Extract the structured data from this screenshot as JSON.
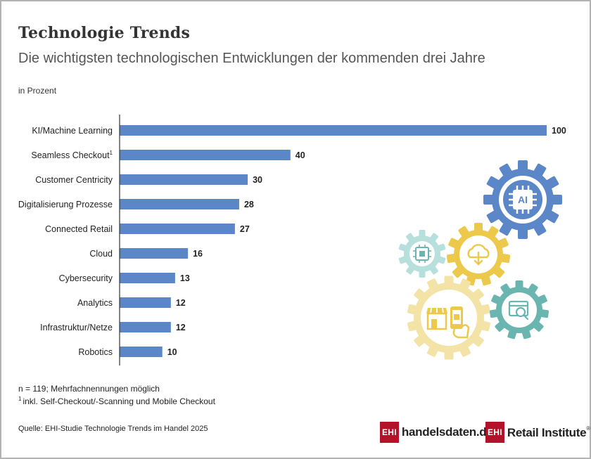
{
  "header": {
    "title": "Technologie Trends",
    "subtitle": "Die wichtigsten technologischen Entwicklungen der kommenden drei Jahre",
    "unit": "in Prozent"
  },
  "chart_data": {
    "type": "bar",
    "orientation": "horizontal",
    "title": "Technologie Trends",
    "subtitle": "Die wichtigsten technologischen Entwicklungen der kommenden drei Jahre",
    "ylabel": "in Prozent",
    "categories": [
      "KI/Machine Learning",
      "Seamless Checkout",
      "Customer Centricity",
      "Digitalisierung Prozesse",
      "Connected Retail",
      "Cloud",
      "Cybersecurity",
      "Analytics",
      "Infrastruktur/Netze",
      "Robotics"
    ],
    "category_marks": [
      "",
      "1",
      "",
      "",
      "",
      "",
      "",
      "",
      "",
      ""
    ],
    "values": [
      100,
      40,
      30,
      28,
      27,
      16,
      13,
      12,
      12,
      10
    ],
    "xlim": [
      0,
      100
    ],
    "bar_color": "#5b87c8",
    "grid": false
  },
  "notes": {
    "sample": "n = 119; Mehrfachnennungen möglich",
    "footnote_mark": "1",
    "footnote": "inkl. Self-Checkout/-Scanning und Mobile Checkout"
  },
  "source": "Quelle: EHI-Studie Technologie Trends im Handel 2025",
  "logos": {
    "left_box": "EHI",
    "left_text": "handelsdaten.de",
    "right_box": "EHI",
    "right_text": "Retail Institute",
    "right_mark": "®"
  },
  "illustration": {
    "ai_label": "AI",
    "icons": [
      "ai-chip-icon",
      "microchip-icon",
      "cloud-download-icon",
      "storefront-mobile-icon",
      "web-search-icon"
    ],
    "colors": {
      "blue": "#5b87c8",
      "teal": "#8ccbc6",
      "yellow": "#ecc94b",
      "pale_yellow": "#f3e3a6",
      "dark_teal": "#6bb5b1"
    }
  }
}
